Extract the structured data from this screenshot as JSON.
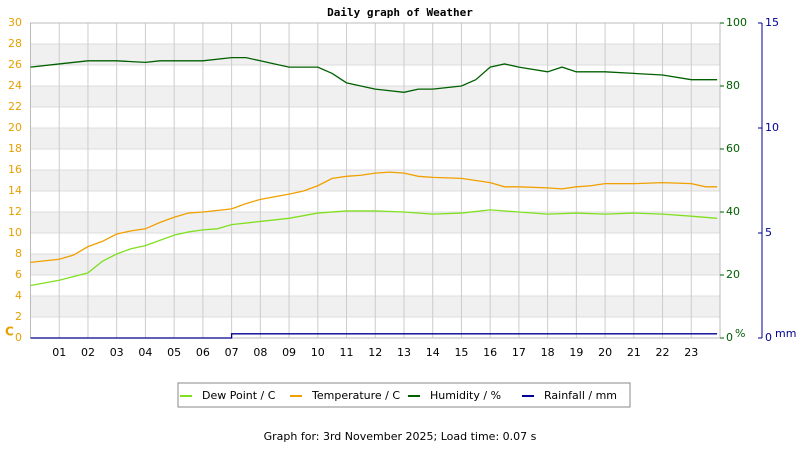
{
  "chart_data": {
    "type": "line",
    "title": "Daily graph of Weather",
    "xlim": [
      0,
      24
    ],
    "xticks": [
      {
        "value": 1,
        "label": "01"
      },
      {
        "value": 2,
        "label": "02"
      },
      {
        "value": 3,
        "label": "03"
      },
      {
        "value": 4,
        "label": "04"
      },
      {
        "value": 5,
        "label": "05"
      },
      {
        "value": 6,
        "label": "06"
      },
      {
        "value": 7,
        "label": "07"
      },
      {
        "value": 8,
        "label": "08"
      },
      {
        "value": 9,
        "label": "09"
      },
      {
        "value": 10,
        "label": "10"
      },
      {
        "value": 11,
        "label": "11"
      },
      {
        "value": 12,
        "label": "12"
      },
      {
        "value": 13,
        "label": "13"
      },
      {
        "value": 14,
        "label": "14"
      },
      {
        "value": 15,
        "label": "15"
      },
      {
        "value": 16,
        "label": "16"
      },
      {
        "value": 17,
        "label": "17"
      },
      {
        "value": 18,
        "label": "18"
      },
      {
        "value": 19,
        "label": "19"
      },
      {
        "value": 20,
        "label": "20"
      },
      {
        "value": 21,
        "label": "21"
      },
      {
        "value": 22,
        "label": "22"
      },
      {
        "value": 23,
        "label": "23"
      }
    ],
    "ylim": [
      0,
      30
    ],
    "yticks": [
      0,
      2,
      4,
      6,
      8,
      10,
      12,
      14,
      16,
      18,
      20,
      22,
      24,
      26,
      28,
      30
    ],
    "y_unit": "C",
    "y_color": "#e8a000",
    "y2lim": [
      0,
      100
    ],
    "y2ticks": [
      0,
      20,
      40,
      60,
      80,
      100
    ],
    "y2_unit": "%",
    "y2_color": "#006000",
    "y3lim": [
      0,
      15
    ],
    "y3ticks": [
      0,
      5,
      10,
      15
    ],
    "y3_unit": "mm",
    "y3_color": "#000090",
    "grid": true,
    "series": [
      {
        "name": "Dew Point / C",
        "color": "#80e020",
        "axis": "y",
        "x": [
          0,
          1,
          2,
          2.5,
          3,
          3.5,
          4,
          4.5,
          5,
          5.5,
          6,
          6.5,
          7,
          8,
          9,
          10,
          11,
          12,
          13,
          14,
          15,
          16,
          17,
          18,
          19,
          20,
          21,
          22,
          23,
          23.9
        ],
        "values": [
          5.0,
          5.5,
          6.2,
          7.3,
          8.0,
          8.5,
          8.8,
          9.3,
          9.8,
          10.1,
          10.3,
          10.4,
          10.8,
          11.1,
          11.4,
          11.9,
          12.1,
          12.1,
          12.0,
          11.8,
          11.9,
          12.2,
          12.0,
          11.8,
          11.9,
          11.8,
          11.9,
          11.8,
          11.6,
          11.4
        ]
      },
      {
        "name": "Temperature / C",
        "color": "#f0a000",
        "axis": "y",
        "x": [
          0,
          1,
          1.5,
          2,
          2.5,
          3,
          3.5,
          4,
          4.5,
          5,
          5.5,
          6,
          7,
          7.5,
          8,
          9,
          9.5,
          10,
          10.5,
          11,
          11.5,
          12,
          12.5,
          13,
          13.5,
          14,
          15,
          15.5,
          16,
          16.5,
          17,
          18,
          18.5,
          19,
          19.5,
          20,
          21,
          22,
          23,
          23.5,
          23.9
        ],
        "values": [
          7.2,
          7.5,
          7.9,
          8.7,
          9.2,
          9.9,
          10.2,
          10.4,
          11.0,
          11.5,
          11.9,
          12.0,
          12.3,
          12.8,
          13.2,
          13.7,
          14.0,
          14.5,
          15.2,
          15.4,
          15.5,
          15.7,
          15.8,
          15.7,
          15.4,
          15.3,
          15.2,
          15.0,
          14.8,
          14.4,
          14.4,
          14.3,
          14.2,
          14.4,
          14.5,
          14.7,
          14.7,
          14.8,
          14.7,
          14.4,
          14.4
        ]
      },
      {
        "name": "Humidity / %",
        "color": "#006000",
        "axis": "y2",
        "x": [
          0,
          1,
          2,
          3,
          4,
          4.5,
          6,
          7,
          7.5,
          8,
          8.5,
          9,
          10,
          10.5,
          11,
          11.5,
          12,
          13,
          13.5,
          14,
          15,
          15.5,
          16,
          16.5,
          17,
          18,
          18.5,
          19,
          20,
          21,
          22,
          23,
          23.9
        ],
        "values": [
          86,
          87,
          88,
          88,
          87.5,
          88,
          88,
          89,
          89,
          88,
          87,
          86,
          86,
          84,
          81,
          80,
          79,
          78,
          79,
          79,
          80,
          82,
          86,
          87,
          86,
          84.5,
          86,
          84.5,
          84.5,
          84,
          83.5,
          82,
          82
        ]
      },
      {
        "name": "Rainfall / mm",
        "color": "#000090",
        "axis": "y3",
        "x": [
          0,
          7,
          7,
          23.9
        ],
        "values": [
          0,
          0,
          0.2,
          0.2
        ]
      }
    ],
    "footer": "Graph for: 3rd November 2025; Load time: 0.07 s"
  }
}
